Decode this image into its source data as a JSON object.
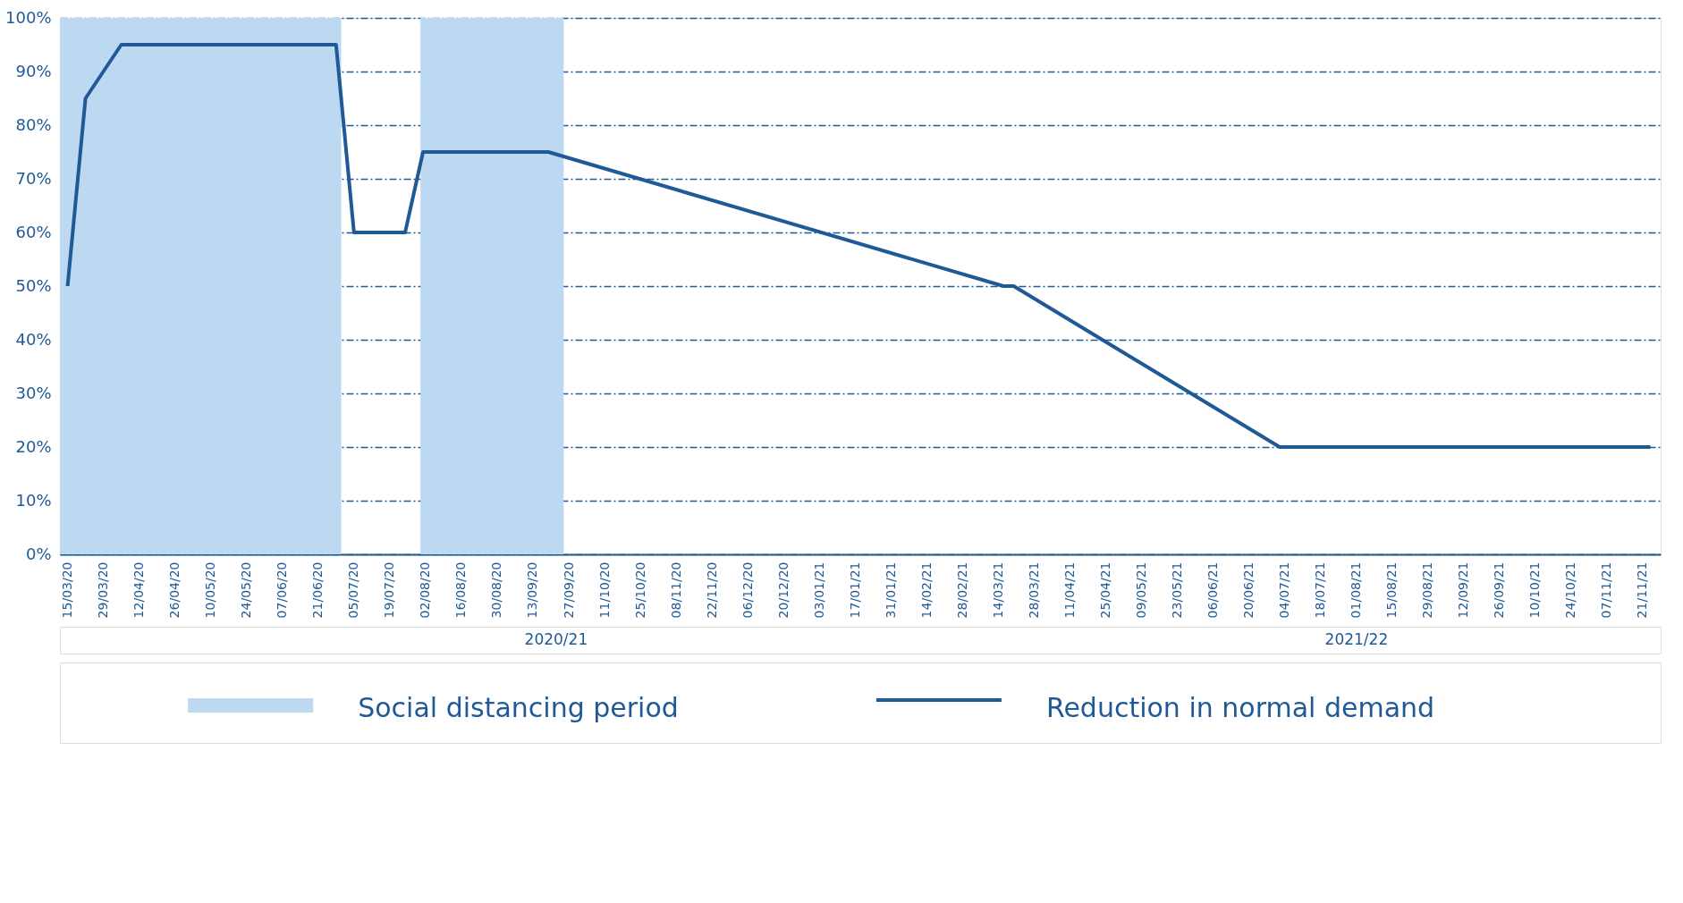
{
  "chart_data": {
    "type": "line",
    "x": [
      "2020-03-15",
      "2020-03-22",
      "2020-04-05",
      "2020-06-28",
      "2020-07-05",
      "2020-07-25",
      "2020-08-01",
      "2020-09-19",
      "2021-03-16",
      "2021-03-20",
      "2021-07-02",
      "2021-11-24"
    ],
    "series": [
      {
        "name": "Reduction in normal demand",
        "color": "#1f5a96",
        "values": [
          50,
          85,
          95,
          95,
          60,
          60,
          75,
          75,
          50,
          50,
          20,
          20
        ]
      }
    ],
    "bands": [
      {
        "axis": "x",
        "from": "2020-03-12",
        "to": "2020-06-30",
        "label": "Social distancing period",
        "color": "#bdd9f2"
      },
      {
        "axis": "x",
        "from": "2020-07-31",
        "to": "2020-09-25",
        "color": "#bdd9f2"
      }
    ],
    "xlim": [
      "2020-03-12",
      "2021-11-28"
    ],
    "xticks": [
      {
        "value": "2020-03-15",
        "label": "15/03/20"
      },
      {
        "value": "2020-03-29",
        "label": "29/03/20"
      },
      {
        "value": "2020-04-12",
        "label": "12/04/20"
      },
      {
        "value": "2020-04-26",
        "label": "26/04/20"
      },
      {
        "value": "2020-05-10",
        "label": "10/05/20"
      },
      {
        "value": "2020-05-24",
        "label": "24/05/20"
      },
      {
        "value": "2020-06-07",
        "label": "07/06/20"
      },
      {
        "value": "2020-06-21",
        "label": "21/06/20"
      },
      {
        "value": "2020-07-05",
        "label": "05/07/20"
      },
      {
        "value": "2020-07-19",
        "label": "19/07/20"
      },
      {
        "value": "2020-08-02",
        "label": "02/08/20"
      },
      {
        "value": "2020-08-16",
        "label": "16/08/20"
      },
      {
        "value": "2020-08-30",
        "label": "30/08/20"
      },
      {
        "value": "2020-09-13",
        "label": "13/09/20"
      },
      {
        "value": "2020-09-27",
        "label": "27/09/20"
      },
      {
        "value": "2020-10-11",
        "label": "11/10/20"
      },
      {
        "value": "2020-10-25",
        "label": "25/10/20"
      },
      {
        "value": "2020-11-08",
        "label": "08/11/20"
      },
      {
        "value": "2020-11-22",
        "label": "22/11/20"
      },
      {
        "value": "2020-12-06",
        "label": "06/12/20"
      },
      {
        "value": "2020-12-20",
        "label": "20/12/20"
      },
      {
        "value": "2021-01-03",
        "label": "03/01/21"
      },
      {
        "value": "2021-01-17",
        "label": "17/01/21"
      },
      {
        "value": "2021-01-31",
        "label": "31/01/21"
      },
      {
        "value": "2021-02-14",
        "label": "14/02/21"
      },
      {
        "value": "2021-02-28",
        "label": "28/02/21"
      },
      {
        "value": "2021-03-14",
        "label": "14/03/21"
      },
      {
        "value": "2021-03-28",
        "label": "28/03/21"
      },
      {
        "value": "2021-04-11",
        "label": "11/04/21"
      },
      {
        "value": "2021-04-25",
        "label": "25/04/21"
      },
      {
        "value": "2021-05-09",
        "label": "09/05/21"
      },
      {
        "value": "2021-05-23",
        "label": "23/05/21"
      },
      {
        "value": "2021-06-06",
        "label": "06/06/21"
      },
      {
        "value": "2021-06-20",
        "label": "20/06/21"
      },
      {
        "value": "2021-07-04",
        "label": "04/07/21"
      },
      {
        "value": "2021-07-18",
        "label": "18/07/21"
      },
      {
        "value": "2021-08-01",
        "label": "01/08/21"
      },
      {
        "value": "2021-08-15",
        "label": "15/08/21"
      },
      {
        "value": "2021-08-29",
        "label": "29/08/21"
      },
      {
        "value": "2021-09-12",
        "label": "12/09/21"
      },
      {
        "value": "2021-09-26",
        "label": "26/09/21"
      },
      {
        "value": "2021-10-10",
        "label": "10/10/21"
      },
      {
        "value": "2021-10-24",
        "label": "24/10/21"
      },
      {
        "value": "2021-11-07",
        "label": "07/11/21"
      },
      {
        "value": "2021-11-21",
        "label": "21/11/21"
      }
    ],
    "ylim": [
      0,
      100
    ],
    "yticks": [
      {
        "value": 0,
        "label": "0%"
      },
      {
        "value": 10,
        "label": "10%"
      },
      {
        "value": 20,
        "label": "20%"
      },
      {
        "value": 30,
        "label": "30%"
      },
      {
        "value": 40,
        "label": "40%"
      },
      {
        "value": 50,
        "label": "50%"
      },
      {
        "value": 60,
        "label": "60%"
      },
      {
        "value": 70,
        "label": "70%"
      },
      {
        "value": 80,
        "label": "80%"
      },
      {
        "value": 90,
        "label": "90%"
      },
      {
        "value": 100,
        "label": "100%"
      }
    ],
    "annotations": [
      "2020/21",
      "2021/22"
    ],
    "grid": "y",
    "legend": "bottom",
    "line_style": "solid"
  }
}
